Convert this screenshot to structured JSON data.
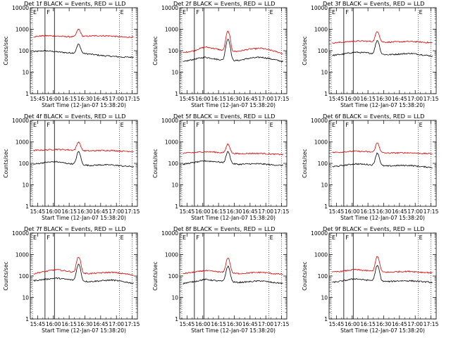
{
  "figure": {
    "colors": {
      "events": "#000000",
      "lld": "#dd0000"
    },
    "x_tick_labels": [
      "15:45",
      "16:00",
      "16:15",
      "16:30",
      "16:45",
      "17:00",
      "17:15"
    ],
    "y_tick_labels": [
      "1",
      "10",
      "100",
      "1000",
      "10000"
    ],
    "ylabel": "Counts/sec",
    "xlabel": "Start Time (12-Jan-07 15:38:20)"
  },
  "chart_data": [
    {
      "type": "line",
      "title": "Det 1f BLACK = Events, RED = LLD",
      "ylim": [
        1,
        10000
      ],
      "y_log": true,
      "x_range": [
        "15:38",
        "17:20"
      ],
      "series": [
        {
          "name": "Events",
          "color": "#000000",
          "baseline": [
            90,
            100,
            90,
            80,
            78,
            70,
            60,
            55,
            50,
            50
          ]
        },
        {
          "name": "LLD",
          "color": "#dd0000",
          "baseline": [
            450,
            500,
            480,
            450,
            450,
            480,
            500,
            480,
            430,
            430
          ]
        }
      ],
      "peak": {
        "x": "16:24",
        "events": 200,
        "lld": 1000
      },
      "markers": [
        "F",
        "E"
      ]
    },
    {
      "type": "line",
      "title": "Det 2f BLACK = Events, RED = LLD",
      "ylim": [
        1,
        10000
      ],
      "y_log": true,
      "x_range": [
        "15:38",
        "17:20"
      ],
      "series": [
        {
          "name": "Events",
          "color": "#000000",
          "baseline": [
            30,
            40,
            50,
            40,
            35,
            35,
            45,
            50,
            40,
            30
          ]
        },
        {
          "name": "LLD",
          "color": "#dd0000",
          "baseline": [
            80,
            100,
            150,
            120,
            90,
            95,
            120,
            130,
            100,
            70
          ]
        }
      ],
      "peak": {
        "x": "16:24",
        "events": 350,
        "lld": 800
      },
      "markers": [
        "F",
        "E"
      ]
    },
    {
      "type": "line",
      "title": "Det 3f BLACK = Events, RED = LLD",
      "ylim": [
        1,
        10000
      ],
      "y_log": true,
      "x_range": [
        "15:38",
        "17:20"
      ],
      "series": [
        {
          "name": "Events",
          "color": "#000000",
          "baseline": [
            60,
            70,
            85,
            80,
            70,
            65,
            70,
            75,
            65,
            55
          ]
        },
        {
          "name": "LLD",
          "color": "#dd0000",
          "baseline": [
            230,
            250,
            280,
            280,
            260,
            250,
            260,
            270,
            250,
            230
          ]
        }
      ],
      "peak": {
        "x": "16:24",
        "events": 300,
        "lld": 800
      },
      "markers": [
        "F",
        "E"
      ]
    },
    {
      "type": "line",
      "title": "Det 4f BLACK = Events, RED = LLD",
      "ylim": [
        1,
        10000
      ],
      "y_log": true,
      "x_range": [
        "15:38",
        "17:20"
      ],
      "series": [
        {
          "name": "Events",
          "color": "#000000",
          "baseline": [
            90,
            110,
            120,
            100,
            90,
            80,
            85,
            85,
            75,
            70
          ]
        },
        {
          "name": "LLD",
          "color": "#dd0000",
          "baseline": [
            400,
            420,
            450,
            430,
            400,
            380,
            400,
            400,
            370,
            360
          ]
        }
      ],
      "peak": {
        "x": "16:24",
        "events": 350,
        "lld": 1000
      },
      "markers": [
        "F",
        "E"
      ]
    },
    {
      "type": "line",
      "title": "Det 5f BLACK = Events, RED = LLD",
      "ylim": [
        1,
        10000
      ],
      "y_log": true,
      "x_range": [
        "15:38",
        "17:20"
      ],
      "series": [
        {
          "name": "Events",
          "color": "#000000",
          "baseline": [
            90,
            110,
            130,
            120,
            100,
            90,
            95,
            95,
            85,
            80
          ]
        },
        {
          "name": "LLD",
          "color": "#dd0000",
          "baseline": [
            300,
            320,
            350,
            330,
            300,
            280,
            290,
            290,
            270,
            260
          ]
        }
      ],
      "peak": {
        "x": "16:24",
        "events": 350,
        "lld": 800
      },
      "markers": [
        "F",
        "E"
      ]
    },
    {
      "type": "line",
      "title": "Det 6f BLACK = Events, RED = LLD",
      "ylim": [
        1,
        10000
      ],
      "y_log": true,
      "x_range": [
        "15:38",
        "17:20"
      ],
      "series": [
        {
          "name": "Events",
          "color": "#000000",
          "baseline": [
            70,
            80,
            95,
            90,
            80,
            75,
            80,
            80,
            70,
            65
          ]
        },
        {
          "name": "LLD",
          "color": "#dd0000",
          "baseline": [
            320,
            340,
            370,
            350,
            320,
            300,
            310,
            310,
            290,
            280
          ]
        }
      ],
      "peak": {
        "x": "16:24",
        "events": 300,
        "lld": 900
      },
      "markers": [
        "F",
        "E"
      ]
    },
    {
      "type": "line",
      "title": "Det 7f BLACK = Events, RED = LLD",
      "ylim": [
        1,
        10000
      ],
      "y_log": true,
      "x_range": [
        "15:38",
        "17:20"
      ],
      "series": [
        {
          "name": "Events",
          "color": "#000000",
          "baseline": [
            60,
            70,
            80,
            70,
            60,
            55,
            60,
            65,
            55,
            45
          ]
        },
        {
          "name": "LLD",
          "color": "#dd0000",
          "baseline": [
            130,
            160,
            200,
            170,
            140,
            130,
            140,
            150,
            130,
            110
          ]
        }
      ],
      "peak": {
        "x": "16:24",
        "events": 350,
        "lld": 800
      },
      "markers": [
        "F",
        "E"
      ]
    },
    {
      "type": "line",
      "title": "Det 8f BLACK = Events, RED = LLD",
      "ylim": [
        1,
        10000
      ],
      "y_log": true,
      "x_range": [
        "15:38",
        "17:20"
      ],
      "series": [
        {
          "name": "Events",
          "color": "#000000",
          "baseline": [
            45,
            55,
            70,
            60,
            55,
            50,
            55,
            60,
            50,
            45
          ]
        },
        {
          "name": "LLD",
          "color": "#dd0000",
          "baseline": [
            130,
            150,
            180,
            160,
            140,
            130,
            140,
            150,
            130,
            120
          ]
        }
      ],
      "peak": {
        "x": "16:24",
        "events": 280,
        "lld": 700
      },
      "markers": [
        "F",
        "E"
      ]
    },
    {
      "type": "line",
      "title": "Det 9f BLACK = Events, RED = LLD",
      "ylim": [
        1,
        10000
      ],
      "y_log": true,
      "x_range": [
        "15:38",
        "17:20"
      ],
      "series": [
        {
          "name": "Events",
          "color": "#000000",
          "baseline": [
            50,
            60,
            75,
            65,
            60,
            55,
            60,
            60,
            55,
            50
          ]
        },
        {
          "name": "LLD",
          "color": "#dd0000",
          "baseline": [
            150,
            170,
            200,
            180,
            160,
            150,
            160,
            165,
            150,
            140
          ]
        }
      ],
      "peak": {
        "x": "16:24",
        "events": 300,
        "lld": 800
      },
      "markers": [
        "F",
        "E"
      ]
    }
  ]
}
